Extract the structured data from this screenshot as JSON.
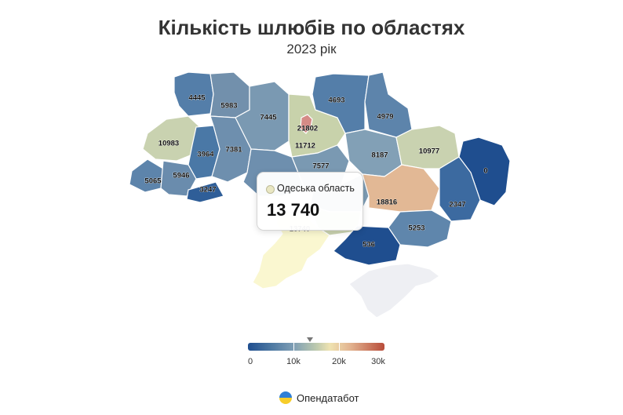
{
  "title": "Кількість шлюбів по областях",
  "subtitle": "2023 рік",
  "colors": {
    "low": "#1f4e8f",
    "mid": "#bcc9ae",
    "high": "#b84c3a",
    "nodata": "#eeeff3",
    "tooltip_swatch": "#e9e7c3"
  },
  "tooltip": {
    "region": "Одеська область",
    "value": "13 740"
  },
  "legend": {
    "ticks": [
      "0",
      "10k",
      "20k",
      "30k"
    ],
    "min": 0,
    "max": 30000,
    "pointer_value": 13740
  },
  "brand": {
    "name": "Опендатабот",
    "icon": "opendatabot-logo"
  },
  "chart_data": {
    "type": "choropleth",
    "values": [
      {
        "label": "4445"
      },
      {
        "label": "5983"
      },
      {
        "label": "7445"
      },
      {
        "label": "21802"
      },
      {
        "label": "4693"
      },
      {
        "label": "4979"
      },
      {
        "label": "10983"
      },
      {
        "label": "3964"
      },
      {
        "label": "7381"
      },
      {
        "label": "11712"
      },
      {
        "label": "8187"
      },
      {
        "label": "10977"
      },
      {
        "label": "0"
      },
      {
        "label": "5065"
      },
      {
        "label": "5946"
      },
      {
        "label": "3247"
      },
      {
        "label": "7577"
      },
      {
        "label": "18816"
      },
      {
        "label": "2347"
      },
      {
        "label": "5253"
      },
      {
        "label": "536"
      },
      {
        "label": "13740"
      }
    ]
  }
}
